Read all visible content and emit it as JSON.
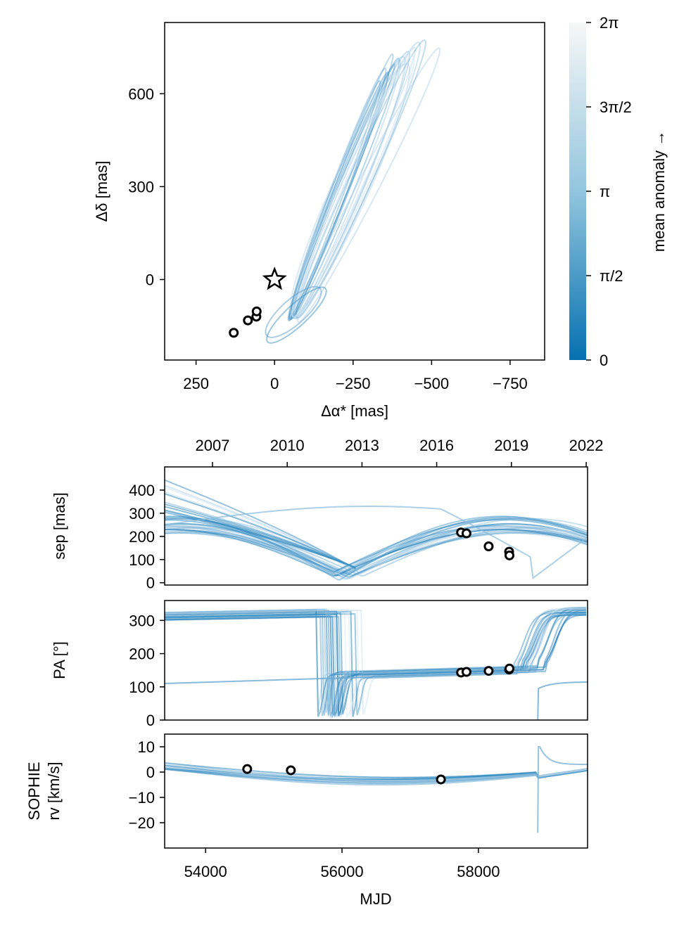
{
  "chart_data": [
    {
      "type": "line",
      "name": "orbit-plot",
      "xlabel": "Δα* [mas]",
      "ylabel": "Δδ [mas]",
      "xlim": [
        350,
        -860
      ],
      "ylim": [
        -260,
        830
      ],
      "xticks": [
        250,
        0,
        -250,
        -500,
        -750
      ],
      "xtick_labels": [
        "250",
        "0",
        "−250",
        "−500",
        "−750"
      ],
      "yticks": [
        0,
        300,
        600
      ],
      "ytick_labels": [
        "0",
        "300",
        "600"
      ],
      "star": {
        "x": 0,
        "y": 0
      },
      "observations": [
        {
          "x": 130,
          "y": -172
        },
        {
          "x": 85,
          "y": -132
        },
        {
          "x": 58,
          "y": -120
        },
        {
          "x": 57,
          "y": -103
        }
      ],
      "sample_orbits": [
        {
          "x0": -225,
          "y0": 295,
          "a": 520,
          "b": 42,
          "angle": 58,
          "color": "#2f8bc2",
          "opacity": 0.35
        },
        {
          "x0": -245,
          "y0": 305,
          "a": 540,
          "b": 55,
          "angle": 57,
          "color": "#6aa9d3",
          "opacity": 0.35
        },
        {
          "x0": -205,
          "y0": 270,
          "a": 490,
          "b": 35,
          "angle": 59,
          "color": "#1f7ab8",
          "opacity": 0.35
        },
        {
          "x0": -265,
          "y0": 320,
          "a": 565,
          "b": 62,
          "angle": 56,
          "color": "#9cc6e2",
          "opacity": 0.45
        },
        {
          "x0": -300,
          "y0": 305,
          "a": 590,
          "b": 48,
          "angle": 52,
          "color": "#b8d6ea",
          "opacity": 0.55
        },
        {
          "x0": -190,
          "y0": 255,
          "a": 470,
          "b": 30,
          "angle": 60,
          "color": "#3a91c6",
          "opacity": 0.35
        },
        {
          "x0": -235,
          "y0": 300,
          "a": 525,
          "b": 70,
          "angle": 57,
          "color": "#7fb4d9",
          "opacity": 0.35
        },
        {
          "x0": -215,
          "y0": 285,
          "a": 510,
          "b": 25,
          "angle": 58,
          "color": "#0f6fad",
          "opacity": 0.3
        },
        {
          "x0": -255,
          "y0": 312,
          "a": 555,
          "b": 40,
          "angle": 56,
          "color": "#c7dfee",
          "opacity": 0.55
        },
        {
          "x0": -275,
          "y0": 325,
          "a": 575,
          "b": 52,
          "angle": 55,
          "color": "#5aa0cf",
          "opacity": 0.35
        },
        {
          "x0": -230,
          "y0": 292,
          "a": 515,
          "b": 48,
          "angle": 58,
          "color": "#8abcde",
          "opacity": 0.35
        },
        {
          "x0": -200,
          "y0": 275,
          "a": 495,
          "b": 38,
          "angle": 60,
          "color": "#2985c0",
          "opacity": 0.3
        },
        {
          "x0": -240,
          "y0": 290,
          "a": 520,
          "b": 85,
          "angle": 55,
          "color": "#a7cbe4",
          "opacity": 0.4
        },
        {
          "x0": -215,
          "y0": 300,
          "a": 520,
          "b": 32,
          "angle": 60,
          "color": "#4b98ca",
          "opacity": 0.35
        },
        {
          "x0": -250,
          "y0": 300,
          "a": 540,
          "b": 60,
          "angle": 55,
          "color": "#d6e7f2",
          "opacity": 0.6
        },
        {
          "x0": -60,
          "y0": -105,
          "a": 160,
          "b": 48,
          "angle": 28,
          "color": "#5aa0cf",
          "opacity": 0.5
        },
        {
          "x0": -70,
          "y0": -115,
          "a": 175,
          "b": 42,
          "angle": 30,
          "color": "#3a91c6",
          "opacity": 0.5
        }
      ]
    },
    {
      "type": "line",
      "name": "separation",
      "ylabel": "sep [mas]",
      "xlim": [
        53400,
        59600
      ],
      "ylim": [
        -10,
        500
      ],
      "yticks": [
        0,
        100,
        200,
        300,
        400
      ],
      "ytick_labels": [
        "0",
        "100",
        "200",
        "300",
        "400"
      ],
      "year_ticks": [
        {
          "mjd": 54101,
          "label": "2007"
        },
        {
          "mjd": 55197,
          "label": "2010"
        },
        {
          "mjd": 56293,
          "label": "2013"
        },
        {
          "mjd": 57388,
          "label": "2016"
        },
        {
          "mjd": 58484,
          "label": "2019"
        },
        {
          "mjd": 59580,
          "label": "2022"
        }
      ],
      "observations": [
        {
          "x": 57745,
          "y": 217
        },
        {
          "x": 57825,
          "y": 213
        },
        {
          "x": 58150,
          "y": 157
        },
        {
          "x": 58450,
          "y": 134
        },
        {
          "x": 58455,
          "y": 118
        }
      ]
    },
    {
      "type": "line",
      "name": "position-angle",
      "ylabel": "PA [°]",
      "xlim": [
        53400,
        59600
      ],
      "ylim": [
        0,
        360
      ],
      "yticks": [
        0,
        100,
        200,
        300
      ],
      "ytick_labels": [
        "0",
        "100",
        "200",
        "300"
      ],
      "observations": [
        {
          "x": 57745,
          "y": 143
        },
        {
          "x": 57825,
          "y": 145
        },
        {
          "x": 58150,
          "y": 148
        },
        {
          "x": 58450,
          "y": 152
        },
        {
          "x": 58455,
          "y": 155
        }
      ]
    },
    {
      "type": "line",
      "name": "radial-velocity",
      "ylabel_line1": "SOPHIE",
      "ylabel_line2": "rv [km/s]",
      "xlabel": "MJD",
      "xlim": [
        53400,
        59600
      ],
      "ylim": [
        -30,
        15
      ],
      "yticks": [
        10,
        0,
        -10,
        -20
      ],
      "ytick_labels": [
        "10",
        "0",
        "−10",
        "−20"
      ],
      "xticks": [
        54000,
        56000,
        58000
      ],
      "xtick_labels": [
        "54000",
        "56000",
        "58000"
      ],
      "observations": [
        {
          "x": 54610,
          "y": 1.2
        },
        {
          "x": 55250,
          "y": 0.7
        },
        {
          "x": 57450,
          "y": -2.9
        }
      ]
    },
    {
      "type": "heatmap",
      "name": "colorbar",
      "label": "mean anomaly →",
      "range": [
        0,
        6.2832
      ],
      "ticks": [
        0,
        1.5708,
        3.1416,
        4.7124,
        6.2832
      ],
      "tick_labels": [
        "0",
        "π/2",
        "π",
        "3π/2",
        "2π"
      ],
      "colors": [
        "#0571b0",
        "#92c5de",
        "#f7f7f7"
      ]
    }
  ]
}
